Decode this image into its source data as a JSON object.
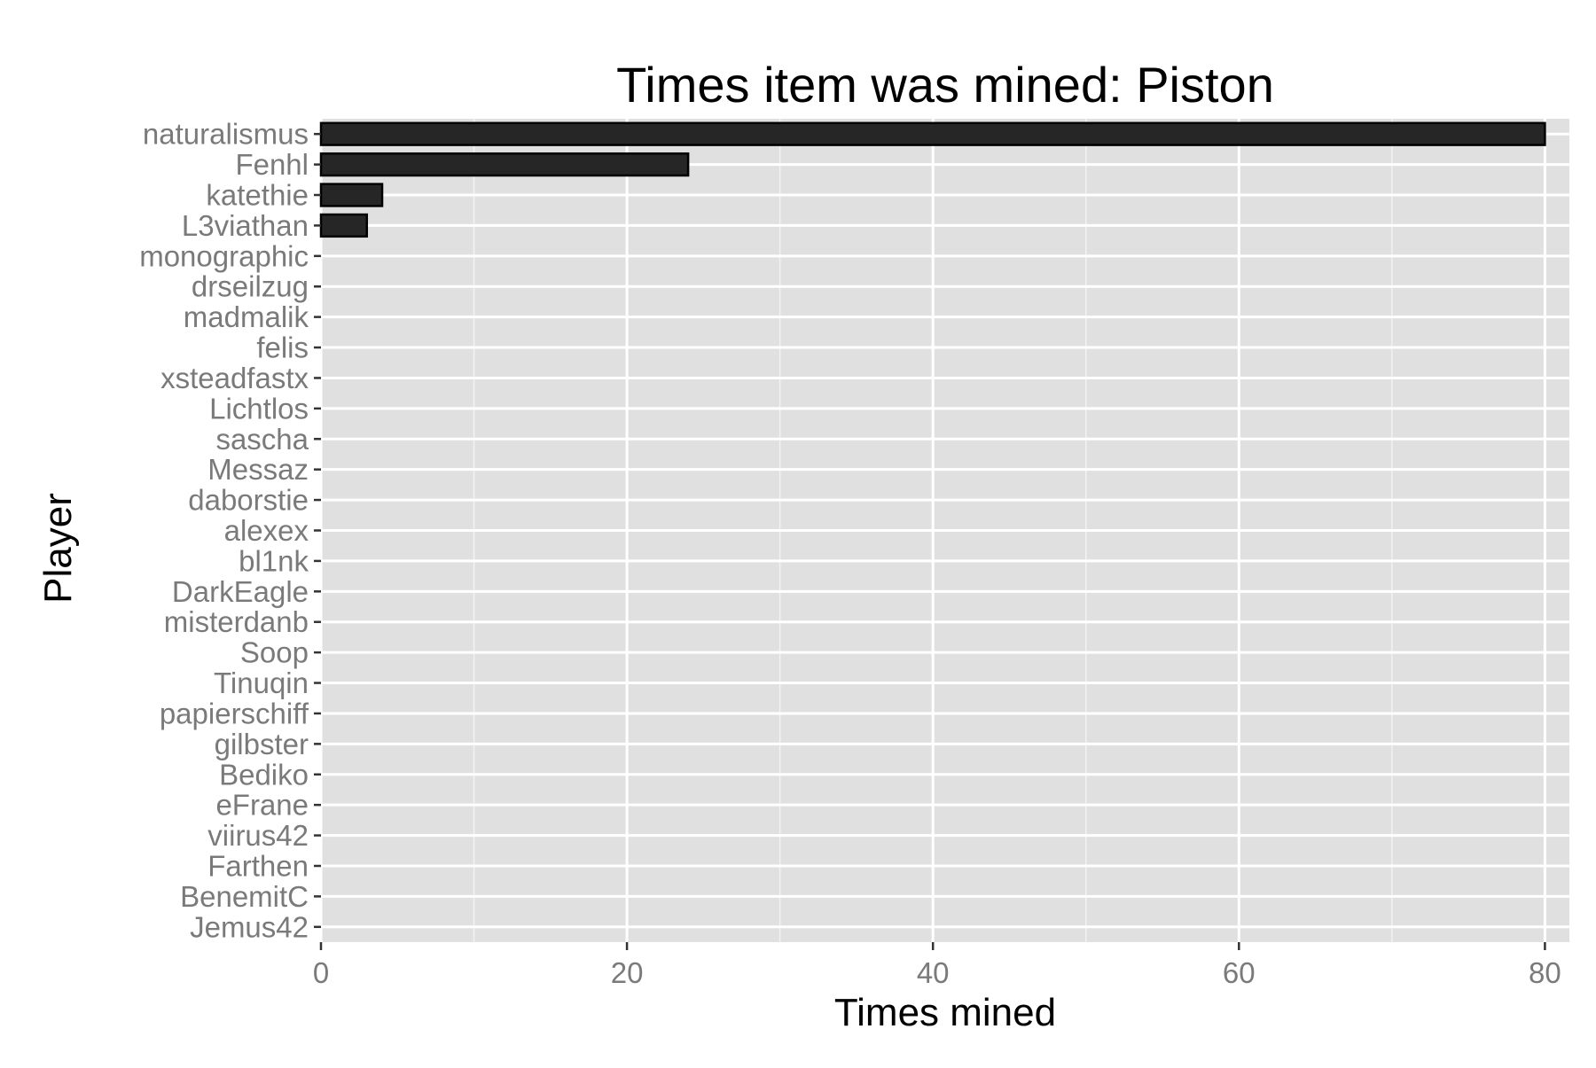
{
  "chart_data": {
    "type": "bar",
    "orientation": "horizontal",
    "title": "Times item was mined: Piston",
    "xlabel": "Times mined",
    "ylabel": "Player",
    "categories": [
      "naturalismus",
      "Fenhl",
      "katethie",
      "L3viathan",
      "monographic",
      "drseilzug",
      "madmalik",
      "felis",
      "xsteadfastx",
      "Lichtlos",
      "sascha",
      "Messaz",
      "daborstie",
      "alexex",
      "bl1nk",
      "DarkEagle",
      "misterdanb",
      "Soop",
      "Tinuqin",
      "papierschiff",
      "gilbster",
      "Bediko",
      "eFrane",
      "viirus42",
      "Farthen",
      "BenemitC",
      "Jemus42"
    ],
    "values": [
      80,
      24,
      4,
      3,
      0,
      0,
      0,
      0,
      0,
      0,
      0,
      0,
      0,
      0,
      0,
      0,
      0,
      0,
      0,
      0,
      0,
      0,
      0,
      0,
      0,
      0,
      0
    ],
    "xticks": [
      0,
      20,
      40,
      60,
      80
    ],
    "xlim": [
      0,
      81.6
    ],
    "grid": true,
    "legend": "none",
    "colors": {
      "bar_fill": "#262626",
      "bar_stroke": "#000000",
      "panel": "#e0e0e0",
      "gridline": "#ffffff",
      "tick_label": "#7a7a7a",
      "title": "#000000"
    }
  }
}
